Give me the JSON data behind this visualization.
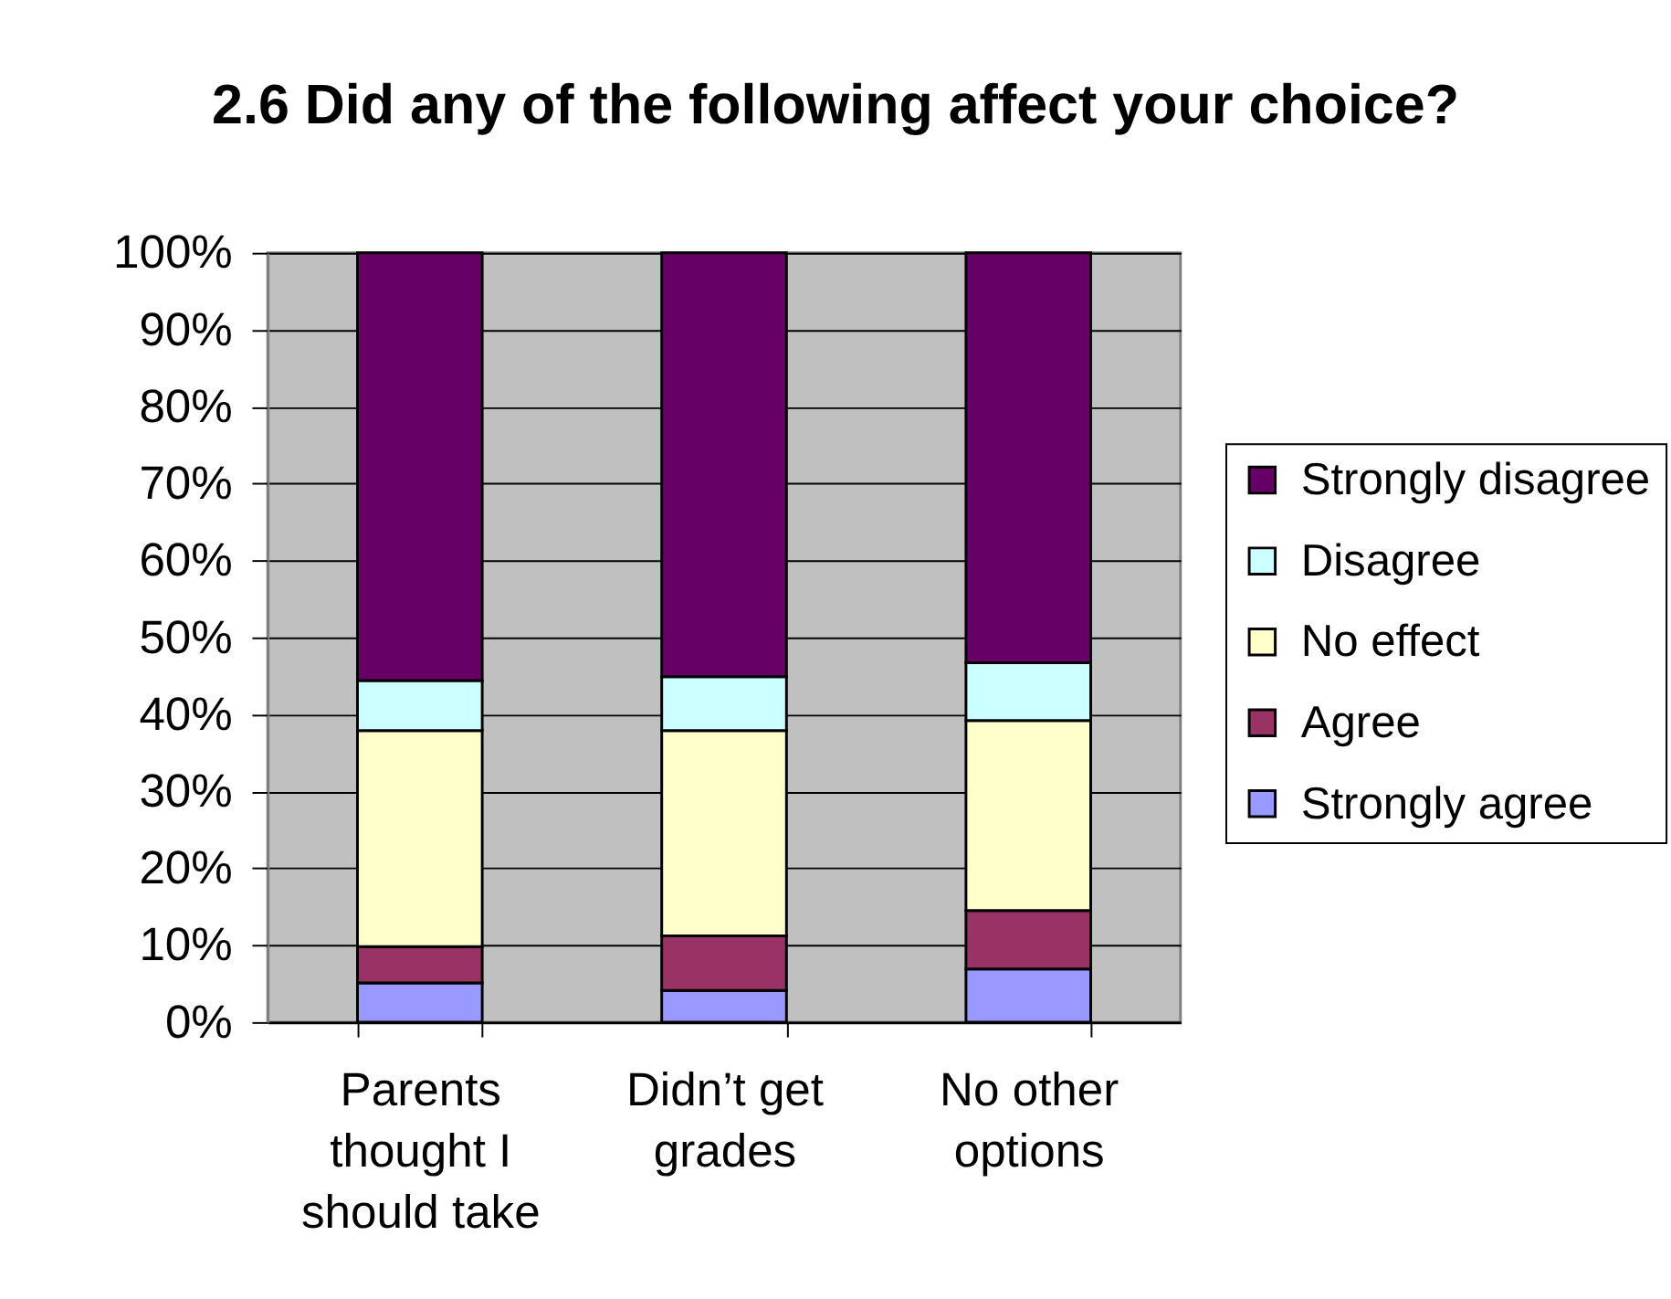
{
  "chart_data": {
    "type": "bar",
    "title": "2.6  Did any of the following affect your choice?",
    "categories": [
      "Parents thought I should take",
      "Didn’t get grades",
      "No other options"
    ],
    "stacked": true,
    "series": [
      {
        "name": "Strongly agree",
        "color": "#9999ff",
        "values": [
          5.1,
          4.1,
          6.9
        ]
      },
      {
        "name": "Agree",
        "color": "#993366",
        "values": [
          4.7,
          7.1,
          7.6
        ]
      },
      {
        "name": "No effect",
        "color": "#ffffcc",
        "values": [
          28.1,
          26.7,
          24.7
        ]
      },
      {
        "name": "Disagree",
        "color": "#ccffff",
        "values": [
          6.5,
          7.0,
          7.5
        ]
      },
      {
        "name": "Strongly disagree",
        "color": "#660066",
        "values": [
          55.6,
          55.1,
          53.3
        ]
      }
    ],
    "ylim": [
      0,
      100
    ],
    "yticks": [
      {
        "value": 0,
        "label": "0%"
      },
      {
        "value": 10,
        "label": "10%"
      },
      {
        "value": 20,
        "label": "20%"
      },
      {
        "value": 30,
        "label": "30%"
      },
      {
        "value": 40,
        "label": "40%"
      },
      {
        "value": 50,
        "label": "50%"
      },
      {
        "value": 60,
        "label": "60%"
      },
      {
        "value": 70,
        "label": "70%"
      },
      {
        "value": 80,
        "label": "80%"
      },
      {
        "value": 90,
        "label": "90%"
      },
      {
        "value": 100,
        "label": "100%"
      }
    ],
    "grid": "y",
    "legend": "right"
  }
}
